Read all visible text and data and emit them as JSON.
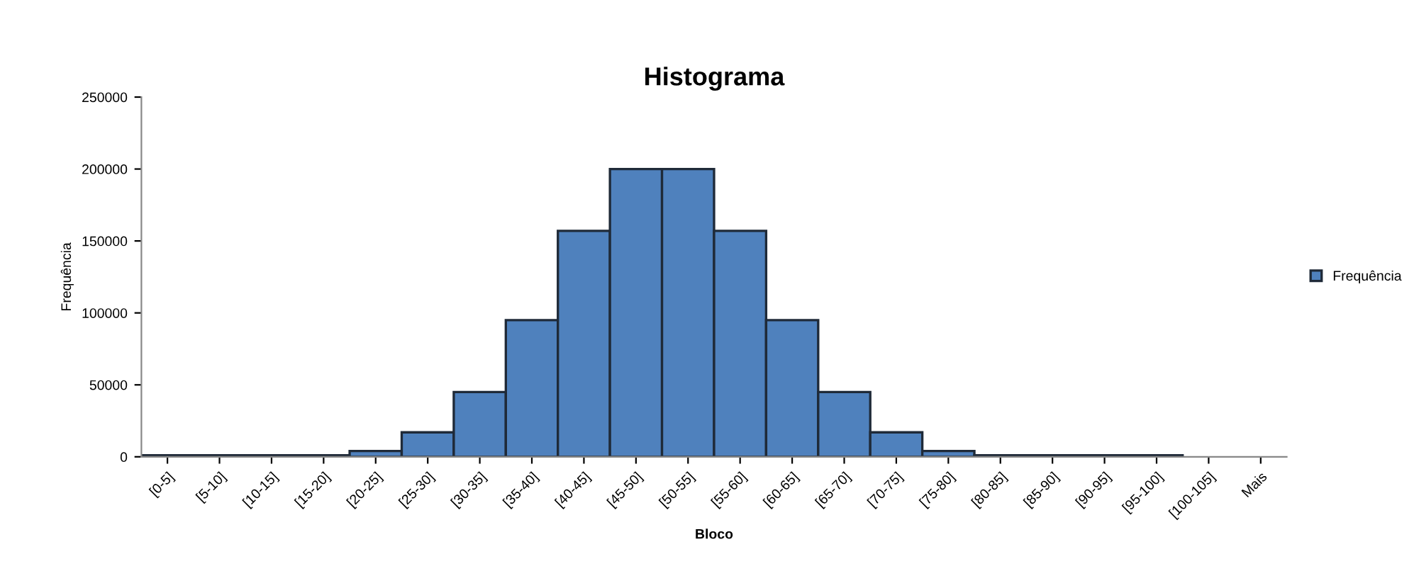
{
  "chart_data": {
    "type": "bar",
    "title": "Histograma",
    "xlabel": "Bloco",
    "ylabel": "Frequência",
    "categories": [
      "[0-5]",
      "[5-10]",
      "[10-15]",
      "[15-20]",
      "[20-25]",
      "[25-30]",
      "[30-35]",
      "[35-40]",
      "[40-45]",
      "[45-50]",
      "[50-55]",
      "[55-60]",
      "[60-65]",
      "[65-70]",
      "[70-75]",
      "[75-80]",
      "[80-85]",
      "[85-90]",
      "[90-95]",
      "[95-100]",
      "[100-105]",
      "Mais"
    ],
    "series": [
      {
        "name": "Frequência",
        "color": "#4f81bd",
        "values": [
          1000,
          1000,
          1000,
          1000,
          4000,
          17000,
          45000,
          95000,
          157000,
          200000,
          200000,
          157000,
          95000,
          45000,
          17000,
          4000,
          1000,
          1000,
          1000,
          1000,
          0,
          0
        ]
      }
    ],
    "ylim": [
      0,
      250000
    ],
    "yticks": [
      0,
      50000,
      100000,
      150000,
      200000,
      250000
    ],
    "grid": false,
    "legend": "right"
  }
}
